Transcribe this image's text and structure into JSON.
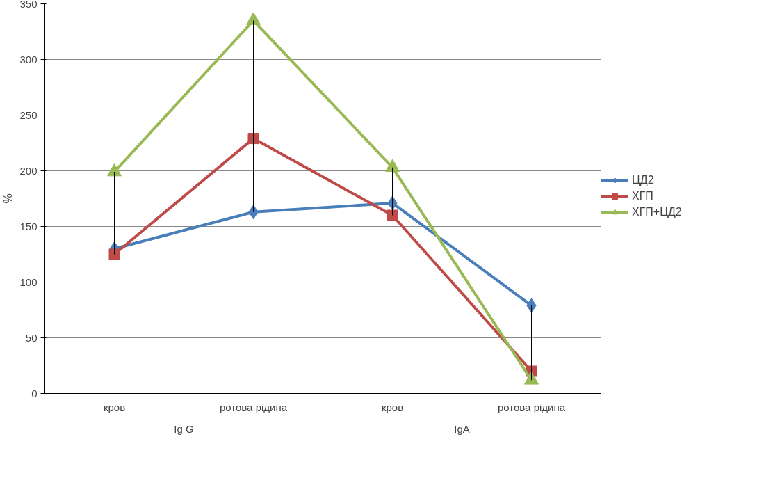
{
  "chart_data": {
    "type": "line",
    "ylabel": "%",
    "categories": [
      "кров",
      "ротова рідина",
      "кров",
      "ротова рідина"
    ],
    "annotations": [
      "Ig G",
      "IgA"
    ],
    "series": [
      {
        "name": "ЦД2",
        "color": "#4a7ebb",
        "marker": "diamond",
        "values": [
          130,
          163,
          171,
          79
        ],
        "errors": [
          null,
          null,
          null,
          [
            12,
            79
          ]
        ]
      },
      {
        "name": "ХГП",
        "color": "#be4b48",
        "marker": "square",
        "values": [
          125,
          229,
          160,
          20
        ]
      },
      {
        "name": "ХГП+ЦД2",
        "color": "#98b954",
        "marker": "triangle",
        "values": [
          199,
          335,
          203,
          12
        ],
        "errors": [
          [
            125,
            199
          ],
          [
            163,
            335
          ],
          [
            160,
            203
          ],
          null
        ]
      }
    ],
    "ylim": [
      0,
      350
    ],
    "yticks": [
      0,
      50,
      100,
      150,
      200,
      250,
      300,
      350
    ],
    "grid": "y",
    "legend": "right"
  }
}
